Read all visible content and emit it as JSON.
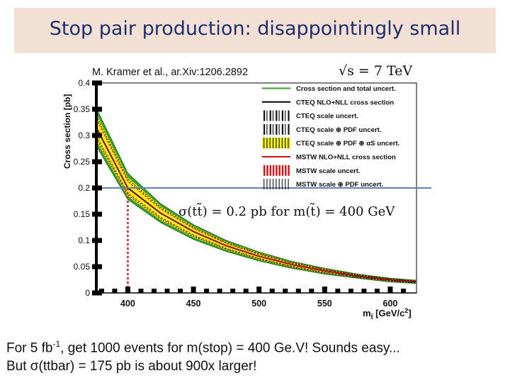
{
  "slide": {
    "title": "Stop pair production: disappointingly small",
    "line1_prefix": "For 5 fb",
    "line1_sup": "-1",
    "line1_suffix": ", get 1000 events for m(stop) = 400 Ge.V! Sounds easy...",
    "line2": "But σ(ttbar) = 175 pb is about 900x larger!"
  },
  "chart_data": {
    "type": "line",
    "title": "M. Kramer et al., ar.Xiv:1206.2892",
    "energy_label": "√s = 7 TeV",
    "xlabel": "m",
    "xlabel_sub": "t̃",
    "xlabel_units": "[GeV/c",
    "xlabel_units_sup": "2",
    "xlabel_units_close": "]",
    "ylabel": "Cross section [pb]",
    "xlim": [
      376,
      620
    ],
    "ylim": [
      0,
      0.4
    ],
    "x_ticks": [
      400,
      450,
      500,
      550,
      600
    ],
    "x_tick_labels": [
      "400",
      "450",
      "500",
      "550",
      "600"
    ],
    "y_ticks": [
      0,
      0.05,
      0.1,
      0.15,
      0.2,
      0.25,
      0.3,
      0.35,
      0.4
    ],
    "y_tick_labels": [
      "0",
      "0.05",
      "0.1",
      "0.15",
      "0.2",
      "0.25",
      "0.3",
      "0.35",
      "0.4"
    ],
    "series": [
      {
        "name": "central",
        "x": [
          376,
          400,
          425,
          450,
          475,
          500,
          525,
          550,
          575,
          600,
          620
        ],
        "values": [
          0.315,
          0.2,
          0.152,
          0.117,
          0.09,
          0.07,
          0.054,
          0.042,
          0.032,
          0.025,
          0.021
        ]
      },
      {
        "name": "band_upper",
        "x": [
          376,
          400,
          425,
          450,
          475,
          500,
          525,
          550,
          575,
          600,
          620
        ],
        "values": [
          0.352,
          0.228,
          0.17,
          0.13,
          0.1,
          0.078,
          0.06,
          0.047,
          0.036,
          0.028,
          0.024
        ]
      },
      {
        "name": "band_lower",
        "x": [
          376,
          400,
          425,
          450,
          475,
          500,
          525,
          550,
          575,
          600,
          620
        ],
        "values": [
          0.28,
          0.178,
          0.134,
          0.102,
          0.079,
          0.061,
          0.047,
          0.036,
          0.028,
          0.021,
          0.018
        ]
      }
    ],
    "legend": [
      "Cross section and total uncert.",
      "CTEQ NLO+NLL cross section",
      "CTEQ scale uncert.",
      "CTEQ scale ⊕ PDF uncert.",
      "CTEQ scale ⊕ PDF ⊕ αS uncert.",
      "MSTW NLO+NLL cross section",
      "MSTW scale uncert.",
      "MSTW scale ⊕ PDF uncert."
    ],
    "annotation": "σ(tt̃) = 0.2 pb     for m(t̃) = 400 GeV",
    "reference": {
      "x": 400,
      "y": 0.2
    },
    "colors": {
      "band_outer": "#3aa32a",
      "band_inner": "#f2ec18",
      "central": "#000000",
      "mstw": "#cc1111",
      "hline": "#5b84b8",
      "vline": "#d42020"
    }
  }
}
